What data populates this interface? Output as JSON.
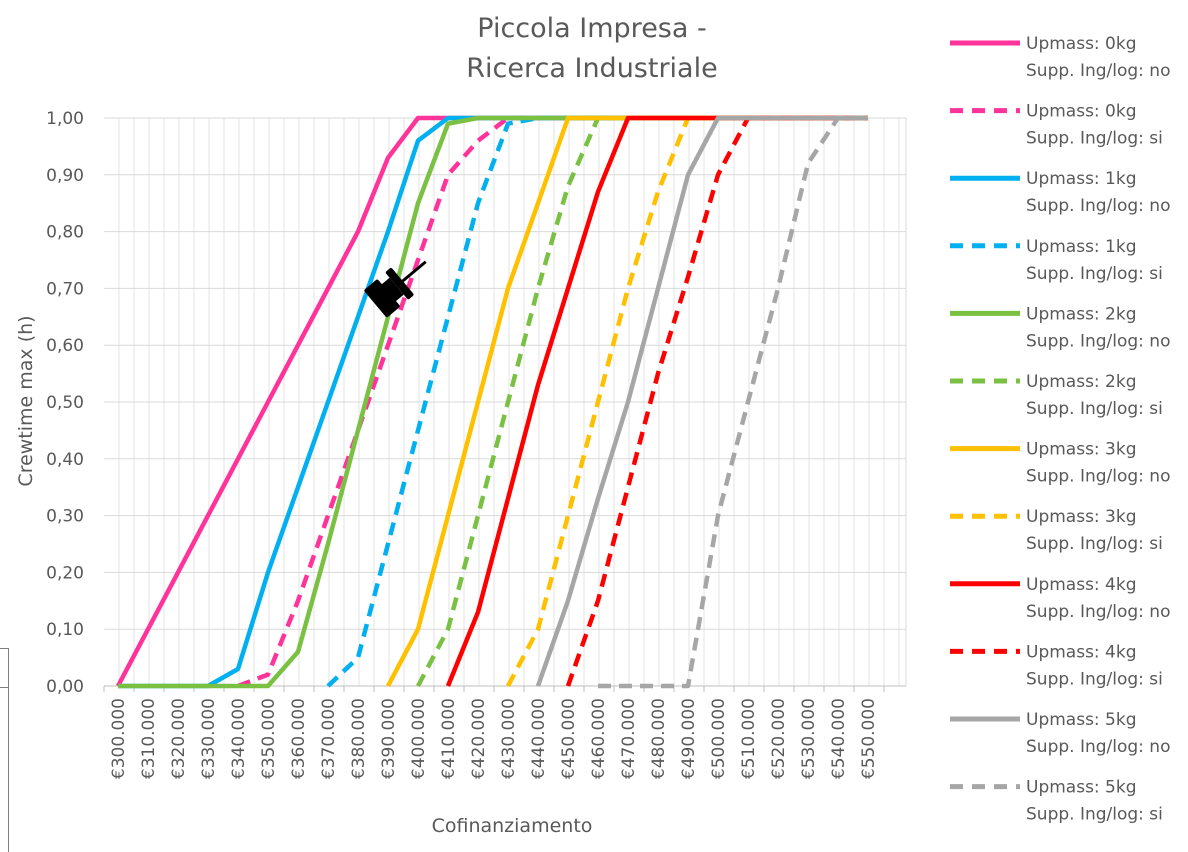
{
  "chart_data": {
    "type": "line",
    "title": [
      "Piccola Impresa -",
      "Ricerca Industriale"
    ],
    "xlabel": "Cofinanziamento",
    "ylabel": "Crewtime max (h)",
    "x": [
      300000,
      310000,
      320000,
      330000,
      340000,
      350000,
      360000,
      370000,
      380000,
      390000,
      400000,
      410000,
      420000,
      430000,
      440000,
      450000,
      460000,
      470000,
      480000,
      490000,
      500000,
      510000,
      520000,
      530000,
      540000,
      550000
    ],
    "x_tick_labels": [
      "€300.000",
      "€310.000",
      "€320.000",
      "€330.000",
      "€340.000",
      "€350.000",
      "€360.000",
      "€370.000",
      "€380.000",
      "€390.000",
      "€400.000",
      "€410.000",
      "€420.000",
      "€430.000",
      "€440.000",
      "€450.000",
      "€460.000",
      "€470.000",
      "€480.000",
      "€490.000",
      "€500.000",
      "€510.000",
      "€520.000",
      "€530.000",
      "€540.000",
      "€550.000"
    ],
    "y_tick_labels": [
      "0,00",
      "0,10",
      "0,20",
      "0,30",
      "0,40",
      "0,50",
      "0,60",
      "0,70",
      "0,80",
      "0,90",
      "1,00"
    ],
    "ylim": [
      0,
      1
    ],
    "grid": true,
    "legend_position": "right",
    "series": [
      {
        "name": [
          "Upmass: 0kg",
          "Supp. Ing/log: no"
        ],
        "color": "#ff3399",
        "dash": false,
        "values": [
          0.0,
          0.1,
          0.2,
          0.3,
          0.4,
          0.5,
          0.6,
          0.7,
          0.8,
          0.93,
          1.0,
          1.0,
          1.0,
          1.0,
          1.0,
          1.0,
          1.0,
          1.0,
          1.0,
          1.0,
          1.0,
          1.0,
          1.0,
          1.0,
          1.0,
          1.0
        ]
      },
      {
        "name": [
          "Upmass: 0kg",
          "Supp. Ing/log: si"
        ],
        "color": "#ff3399",
        "dash": true,
        "values": [
          null,
          null,
          null,
          null,
          0.0,
          0.02,
          0.15,
          0.3,
          0.45,
          0.6,
          0.75,
          0.9,
          0.96,
          1.0,
          1.0,
          1.0,
          1.0,
          1.0,
          1.0,
          1.0,
          1.0,
          1.0,
          1.0,
          1.0,
          1.0,
          1.0
        ]
      },
      {
        "name": [
          "Upmass: 1kg",
          "Supp. Ing/log: no"
        ],
        "color": "#00b0f0",
        "dash": false,
        "values": [
          0.0,
          0.0,
          0.0,
          0.0,
          0.03,
          0.2,
          0.35,
          0.5,
          0.65,
          0.8,
          0.96,
          1.0,
          1.0,
          1.0,
          1.0,
          1.0,
          1.0,
          1.0,
          1.0,
          1.0,
          1.0,
          1.0,
          1.0,
          1.0,
          1.0,
          1.0
        ]
      },
      {
        "name": [
          "Upmass: 1kg",
          "Supp. Ing/log: si"
        ],
        "color": "#00b0f0",
        "dash": true,
        "values": [
          null,
          null,
          null,
          null,
          null,
          null,
          null,
          0.0,
          0.05,
          0.25,
          0.45,
          0.65,
          0.85,
          0.99,
          1.0,
          1.0,
          1.0,
          1.0,
          1.0,
          1.0,
          1.0,
          1.0,
          1.0,
          1.0,
          1.0,
          1.0
        ]
      },
      {
        "name": [
          "Upmass: 2kg",
          "Supp. Ing/log: no"
        ],
        "color": "#7ac143",
        "dash": false,
        "values": [
          0.0,
          0.0,
          0.0,
          0.0,
          0.0,
          0.0,
          0.06,
          0.25,
          0.45,
          0.65,
          0.85,
          0.99,
          1.0,
          1.0,
          1.0,
          1.0,
          1.0,
          1.0,
          1.0,
          1.0,
          1.0,
          1.0,
          1.0,
          1.0,
          1.0,
          1.0
        ]
      },
      {
        "name": [
          "Upmass: 2kg",
          "Supp. Ing/log: si"
        ],
        "color": "#7ac143",
        "dash": true,
        "values": [
          null,
          null,
          null,
          null,
          null,
          null,
          null,
          null,
          null,
          null,
          0.0,
          0.1,
          0.3,
          0.5,
          0.7,
          0.88,
          1.0,
          1.0,
          1.0,
          1.0,
          1.0,
          1.0,
          1.0,
          1.0,
          1.0,
          1.0
        ]
      },
      {
        "name": [
          "Upmass: 3kg",
          "Supp. Ing/log: no"
        ],
        "color": "#ffc000",
        "dash": false,
        "values": [
          null,
          null,
          null,
          null,
          null,
          null,
          null,
          null,
          null,
          0.0,
          0.1,
          0.3,
          0.5,
          0.7,
          0.85,
          1.0,
          1.0,
          1.0,
          1.0,
          1.0,
          1.0,
          1.0,
          1.0,
          1.0,
          1.0,
          1.0
        ]
      },
      {
        "name": [
          "Upmass: 3kg",
          "Supp. Ing/log: si"
        ],
        "color": "#ffc000",
        "dash": true,
        "values": [
          null,
          null,
          null,
          null,
          null,
          null,
          null,
          null,
          null,
          null,
          null,
          null,
          null,
          0.0,
          0.1,
          0.3,
          0.5,
          0.7,
          0.87,
          1.0,
          1.0,
          1.0,
          1.0,
          1.0,
          1.0,
          1.0
        ]
      },
      {
        "name": [
          "Upmass: 4kg",
          "Supp. Ing/log: no"
        ],
        "color": "#ff0000",
        "dash": false,
        "values": [
          null,
          null,
          null,
          null,
          null,
          null,
          null,
          null,
          null,
          null,
          null,
          0.0,
          0.13,
          0.33,
          0.53,
          0.7,
          0.87,
          1.0,
          1.0,
          1.0,
          1.0,
          1.0,
          1.0,
          1.0,
          1.0,
          1.0
        ]
      },
      {
        "name": [
          "Upmass: 4kg",
          "Supp. Ing/log: si"
        ],
        "color": "#ff0000",
        "dash": true,
        "values": [
          null,
          null,
          null,
          null,
          null,
          null,
          null,
          null,
          null,
          null,
          null,
          null,
          null,
          null,
          null,
          0.0,
          0.15,
          0.35,
          0.55,
          0.72,
          0.9,
          1.0,
          1.0,
          1.0,
          1.0,
          1.0
        ]
      },
      {
        "name": [
          "Upmass: 5kg",
          "Supp. Ing/log: no"
        ],
        "color": "#a6a6a6",
        "dash": false,
        "values": [
          null,
          null,
          null,
          null,
          null,
          null,
          null,
          null,
          null,
          null,
          null,
          null,
          null,
          null,
          0.0,
          0.15,
          0.33,
          0.5,
          0.7,
          0.9,
          1.0,
          1.0,
          1.0,
          1.0,
          1.0,
          1.0
        ]
      },
      {
        "name": [
          "Upmass: 5kg",
          "Supp. Ing/log: si"
        ],
        "color": "#a6a6a6",
        "dash": true,
        "values": [
          null,
          null,
          null,
          null,
          null,
          null,
          null,
          null,
          null,
          null,
          null,
          null,
          null,
          null,
          null,
          null,
          0.0,
          0.0,
          0.0,
          0.0,
          0.3,
          0.5,
          0.7,
          0.92,
          1.0,
          1.0
        ]
      }
    ]
  },
  "pin_icon": {
    "name": "pushpin-icon",
    "color": "#000000"
  }
}
